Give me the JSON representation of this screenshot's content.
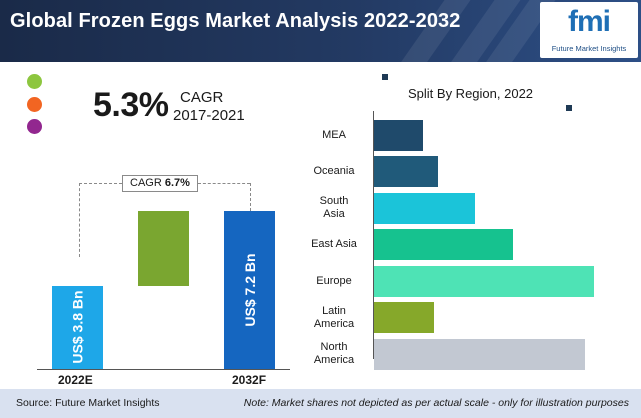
{
  "header": {
    "title": "Global Frozen Eggs Market Analysis 2022-2032"
  },
  "logo": {
    "text": "fmi",
    "subtitle": "Future Market Insights"
  },
  "legend_dot_colors": [
    "#8dc63f",
    "#f26522",
    "#92278f"
  ],
  "cagr_past": {
    "value": "5.3%",
    "label": "CAGR",
    "period": "2017-2021"
  },
  "chart_data": [
    {
      "type": "bar",
      "orientation": "vertical",
      "categories": [
        "2022E",
        "2032F"
      ],
      "values": [
        3.8,
        7.2
      ],
      "value_labels": [
        "US$ 3.8 Bn",
        "US$ 7.2 Bn"
      ],
      "bar_colors": [
        "#1ea7e8",
        "#1566c0"
      ],
      "increment_color": "#7aa630",
      "cagr_label": "CAGR",
      "cagr_value": "6.7%",
      "ylim": [
        0,
        7.2
      ]
    },
    {
      "type": "bar",
      "orientation": "horizontal",
      "title": "Split By Region, 2022",
      "categories": [
        "MEA",
        "Oceania",
        "South Asia",
        "East Asia",
        "Europe",
        "Latin America",
        "North America"
      ],
      "category_lines": [
        [
          "MEA"
        ],
        [
          "Oceania"
        ],
        [
          "South",
          "Asia"
        ],
        [
          "East Asia"
        ],
        [
          "Europe"
        ],
        [
          "Latin",
          "America"
        ],
        [
          "North",
          "America"
        ]
      ],
      "values": [
        50,
        65,
        103,
        142,
        225,
        61,
        216
      ],
      "colors": [
        "#1f4a6b",
        "#205a7a",
        "#1bc4d9",
        "#16c28f",
        "#4ee3b5",
        "#86a82a",
        "#c2c8d2"
      ],
      "xlim": [
        0,
        230
      ],
      "note": "relative shares, not depicted to scale"
    }
  ],
  "footer": {
    "source": "Source: Future Market Insights",
    "note": "Note: Market shares not depicted as per actual scale - only for illustration purposes"
  }
}
